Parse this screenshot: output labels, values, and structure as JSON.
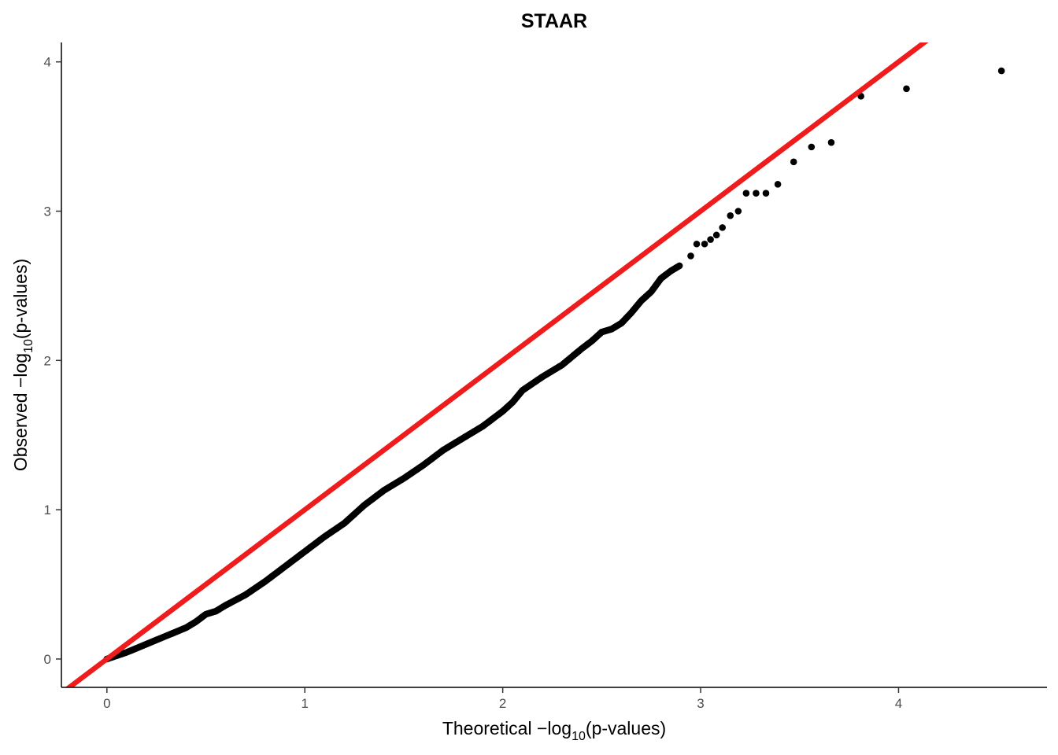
{
  "chart_data": {
    "type": "scatter",
    "title": "STAAR",
    "xlabel": {
      "prefix": "Theoretical −log",
      "subscript": "10",
      "suffix": "(p-values)"
    },
    "ylabel": {
      "prefix": "Observed −log",
      "subscript": "10",
      "suffix": "(p-values)"
    },
    "xlim": [
      -0.23,
      4.75
    ],
    "ylim": [
      -0.19,
      4.13
    ],
    "x_ticks": [
      0,
      1,
      2,
      3,
      4
    ],
    "y_ticks": [
      0,
      1,
      2,
      3,
      4
    ],
    "x_tick_labels": [
      "0",
      "1",
      "2",
      "3",
      "4"
    ],
    "y_tick_labels": [
      "0",
      "1",
      "2",
      "3",
      "4"
    ],
    "grid": false,
    "reference_line": {
      "slope": 1,
      "intercept": 0,
      "color": "#ee1c1c"
    },
    "point_color": "#000000",
    "qq_curve": [
      [
        0,
        0
      ],
      [
        0.1,
        0.045
      ],
      [
        0.2,
        0.1
      ],
      [
        0.3,
        0.155
      ],
      [
        0.4,
        0.21
      ],
      [
        0.45,
        0.25
      ],
      [
        0.5,
        0.3
      ],
      [
        0.55,
        0.32
      ],
      [
        0.6,
        0.36
      ],
      [
        0.7,
        0.43
      ],
      [
        0.8,
        0.52
      ],
      [
        0.9,
        0.62
      ],
      [
        1.0,
        0.72
      ],
      [
        1.1,
        0.82
      ],
      [
        1.2,
        0.91
      ],
      [
        1.3,
        1.03
      ],
      [
        1.4,
        1.13
      ],
      [
        1.5,
        1.21
      ],
      [
        1.6,
        1.3
      ],
      [
        1.7,
        1.4
      ],
      [
        1.8,
        1.48
      ],
      [
        1.9,
        1.56
      ],
      [
        2.0,
        1.66
      ],
      [
        2.05,
        1.72
      ],
      [
        2.1,
        1.8
      ],
      [
        2.2,
        1.89
      ],
      [
        2.3,
        1.97
      ],
      [
        2.4,
        2.08
      ],
      [
        2.45,
        2.13
      ],
      [
        2.5,
        2.19
      ],
      [
        2.55,
        2.21
      ],
      [
        2.6,
        2.25
      ],
      [
        2.65,
        2.32
      ],
      [
        2.7,
        2.4
      ],
      [
        2.75,
        2.46
      ],
      [
        2.8,
        2.55
      ],
      [
        2.85,
        2.6
      ],
      [
        2.9,
        2.64
      ]
    ],
    "tail_points": [
      [
        2.95,
        2.7
      ],
      [
        2.98,
        2.78
      ],
      [
        3.02,
        2.78
      ],
      [
        3.05,
        2.81
      ],
      [
        3.08,
        2.84
      ],
      [
        3.11,
        2.89
      ],
      [
        3.15,
        2.97
      ],
      [
        3.19,
        3.0
      ],
      [
        3.23,
        3.12
      ],
      [
        3.28,
        3.12
      ],
      [
        3.33,
        3.12
      ],
      [
        3.39,
        3.18
      ],
      [
        3.47,
        3.33
      ],
      [
        3.56,
        3.43
      ],
      [
        3.66,
        3.46
      ],
      [
        3.81,
        3.77
      ],
      [
        4.04,
        3.82
      ],
      [
        4.52,
        3.94
      ]
    ]
  }
}
